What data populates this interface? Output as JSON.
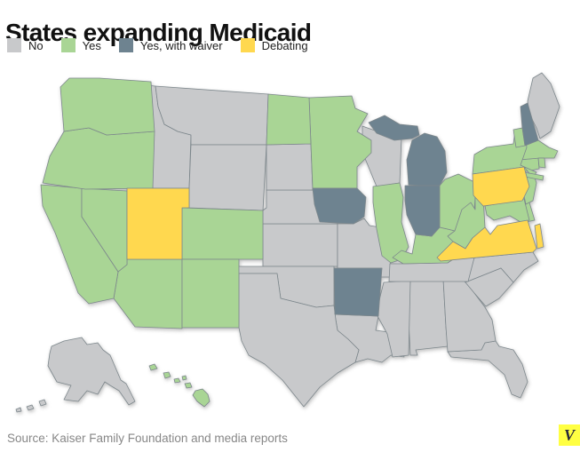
{
  "title": "States expanding Medicaid",
  "legend": [
    {
      "id": "no",
      "label": "No",
      "color": "#c8c9cb"
    },
    {
      "id": "yes",
      "label": "Yes",
      "color": "#a9d595"
    },
    {
      "id": "waiver",
      "label": "Yes, with waiver",
      "color": "#6e8390"
    },
    {
      "id": "debating",
      "label": "Debating",
      "color": "#ffd84f"
    }
  ],
  "source": "Source: Kaiser Family Foundation and media reports",
  "logo": {
    "letter": "V",
    "background": "#ffff42",
    "color": "#26263a"
  },
  "chart_data": {
    "type": "heatmap",
    "title": "States expanding Medicaid",
    "legend_position": "top",
    "categories": [
      "No",
      "Yes",
      "Yes, with waiver",
      "Debating"
    ],
    "states": [
      {
        "abbr": "AL",
        "name": "Alabama",
        "status": "no"
      },
      {
        "abbr": "AK",
        "name": "Alaska",
        "status": "no"
      },
      {
        "abbr": "AZ",
        "name": "Arizona",
        "status": "yes"
      },
      {
        "abbr": "AR",
        "name": "Arkansas",
        "status": "waiver"
      },
      {
        "abbr": "CA",
        "name": "California",
        "status": "yes"
      },
      {
        "abbr": "CO",
        "name": "Colorado",
        "status": "yes"
      },
      {
        "abbr": "CT",
        "name": "Connecticut",
        "status": "yes"
      },
      {
        "abbr": "DE",
        "name": "Delaware",
        "status": "yes"
      },
      {
        "abbr": "FL",
        "name": "Florida",
        "status": "no"
      },
      {
        "abbr": "GA",
        "name": "Georgia",
        "status": "no"
      },
      {
        "abbr": "HI",
        "name": "Hawaii",
        "status": "yes"
      },
      {
        "abbr": "ID",
        "name": "Idaho",
        "status": "no"
      },
      {
        "abbr": "IL",
        "name": "Illinois",
        "status": "yes"
      },
      {
        "abbr": "IN",
        "name": "Indiana",
        "status": "waiver"
      },
      {
        "abbr": "IA",
        "name": "Iowa",
        "status": "waiver"
      },
      {
        "abbr": "KS",
        "name": "Kansas",
        "status": "no"
      },
      {
        "abbr": "KY",
        "name": "Kentucky",
        "status": "yes"
      },
      {
        "abbr": "LA",
        "name": "Louisiana",
        "status": "no"
      },
      {
        "abbr": "ME",
        "name": "Maine",
        "status": "no"
      },
      {
        "abbr": "MD",
        "name": "Maryland",
        "status": "yes"
      },
      {
        "abbr": "MA",
        "name": "Massachusetts",
        "status": "yes"
      },
      {
        "abbr": "MI",
        "name": "Michigan",
        "status": "waiver"
      },
      {
        "abbr": "MN",
        "name": "Minnesota",
        "status": "yes"
      },
      {
        "abbr": "MS",
        "name": "Mississippi",
        "status": "no"
      },
      {
        "abbr": "MO",
        "name": "Missouri",
        "status": "no"
      },
      {
        "abbr": "MT",
        "name": "Montana",
        "status": "no"
      },
      {
        "abbr": "NE",
        "name": "Nebraska",
        "status": "no"
      },
      {
        "abbr": "NV",
        "name": "Nevada",
        "status": "yes"
      },
      {
        "abbr": "NH",
        "name": "New Hampshire",
        "status": "waiver"
      },
      {
        "abbr": "NJ",
        "name": "New Jersey",
        "status": "yes"
      },
      {
        "abbr": "NM",
        "name": "New Mexico",
        "status": "yes"
      },
      {
        "abbr": "NY",
        "name": "New York",
        "status": "yes"
      },
      {
        "abbr": "NC",
        "name": "North Carolina",
        "status": "no"
      },
      {
        "abbr": "ND",
        "name": "North Dakota",
        "status": "yes"
      },
      {
        "abbr": "OH",
        "name": "Ohio",
        "status": "yes"
      },
      {
        "abbr": "OK",
        "name": "Oklahoma",
        "status": "no"
      },
      {
        "abbr": "OR",
        "name": "Oregon",
        "status": "yes"
      },
      {
        "abbr": "PA",
        "name": "Pennsylvania",
        "status": "debating"
      },
      {
        "abbr": "RI",
        "name": "Rhode Island",
        "status": "yes"
      },
      {
        "abbr": "SC",
        "name": "South Carolina",
        "status": "no"
      },
      {
        "abbr": "SD",
        "name": "South Dakota",
        "status": "no"
      },
      {
        "abbr": "TN",
        "name": "Tennessee",
        "status": "no"
      },
      {
        "abbr": "TX",
        "name": "Texas",
        "status": "no"
      },
      {
        "abbr": "UT",
        "name": "Utah",
        "status": "debating"
      },
      {
        "abbr": "VT",
        "name": "Vermont",
        "status": "yes"
      },
      {
        "abbr": "VA",
        "name": "Virginia",
        "status": "debating"
      },
      {
        "abbr": "WA",
        "name": "Washington",
        "status": "yes"
      },
      {
        "abbr": "WV",
        "name": "West Virginia",
        "status": "yes"
      },
      {
        "abbr": "WI",
        "name": "Wisconsin",
        "status": "no"
      },
      {
        "abbr": "WY",
        "name": "Wyoming",
        "status": "no"
      }
    ]
  }
}
